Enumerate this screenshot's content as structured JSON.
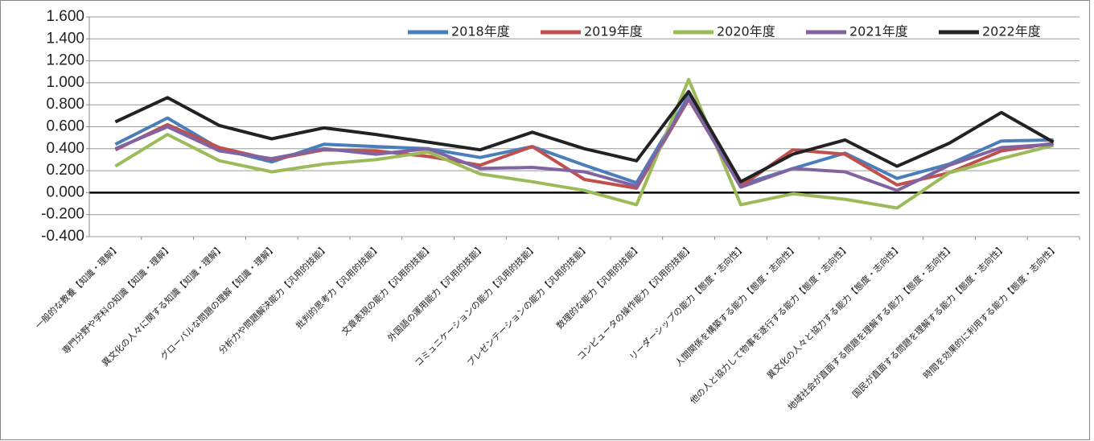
{
  "chart_data": {
    "type": "line",
    "categories": [
      "一般的な教養【知識・理解】",
      "専門分野や学科の知識【知識・理解】",
      "異文化の人々に関する知識【知識・理解】",
      "グローバルな問題の理解【知識・理解】",
      "分析力や問題解決能力【汎用的技能】",
      "批判的思考力【汎用的技能】",
      "文章表現の能力【汎用的技能】",
      "外国語の運用能力【汎用的技能】",
      "コミュニケーションの能力【汎用的技能】",
      "プレゼンテーションの能力【汎用的技能】",
      "数理的な能力【汎用的技能】",
      "コンピュータの操作能力【汎用的技能】",
      "リーダーシップの能力【態度・志向性】",
      "人間関係を構築する能力【態度・志向性】",
      "他の人と協力して物事を遂行する能力【態度・志向性】",
      "異文化の人々と協力する能力【態度・志向性】",
      "地域社会が直面する問題を理解する能力【態度・志向性】",
      "国民が直面する問題を理解する能力【態度・志向性】",
      "時間を効果的に利用する能力【態度・志向性】"
    ],
    "series": [
      {
        "name": "2018年度",
        "color": "#4a7ebb",
        "values": [
          0.44,
          0.68,
          0.4,
          0.28,
          0.44,
          0.42,
          0.4,
          0.32,
          0.42,
          0.25,
          0.09,
          0.88,
          0.07,
          0.22,
          0.36,
          0.13,
          0.26,
          0.47,
          0.48
        ]
      },
      {
        "name": "2019年度",
        "color": "#c0504d",
        "values": [
          0.39,
          0.62,
          0.41,
          0.3,
          0.39,
          0.38,
          0.33,
          0.25,
          0.42,
          0.12,
          0.04,
          0.85,
          0.06,
          0.39,
          0.35,
          0.07,
          0.18,
          0.38,
          0.45
        ]
      },
      {
        "name": "2020年度",
        "color": "#9bbb59",
        "values": [
          0.24,
          0.53,
          0.29,
          0.19,
          0.26,
          0.3,
          0.37,
          0.17,
          0.1,
          0.02,
          -0.11,
          1.03,
          -0.11,
          -0.01,
          -0.06,
          -0.14,
          0.18,
          0.31,
          0.43
        ]
      },
      {
        "name": "2021年度",
        "color": "#8064a2",
        "values": [
          0.4,
          0.6,
          0.38,
          0.31,
          0.4,
          0.35,
          0.4,
          0.22,
          0.23,
          0.19,
          0.06,
          0.86,
          0.05,
          0.22,
          0.19,
          0.02,
          0.25,
          0.41,
          0.44
        ]
      },
      {
        "name": "2022年度",
        "color": "#222222",
        "values": [
          0.645,
          0.865,
          0.61,
          0.49,
          0.59,
          0.53,
          0.46,
          0.39,
          0.55,
          0.4,
          0.29,
          0.92,
          0.1,
          0.35,
          0.48,
          0.24,
          0.45,
          0.73,
          0.46
        ]
      }
    ],
    "ylim": [
      -0.4,
      1.6
    ],
    "yticks": [
      {
        "value": -0.4,
        "label": "-0.400"
      },
      {
        "value": -0.2,
        "label": "-0.200"
      },
      {
        "value": 0,
        "label": "0.000"
      },
      {
        "value": 0.2,
        "label": "0.200"
      },
      {
        "value": 0.4,
        "label": "0.400"
      },
      {
        "value": 0.6,
        "label": "0.600"
      },
      {
        "value": 0.8,
        "label": "0.800"
      },
      {
        "value": 1.0,
        "label": "1.000"
      },
      {
        "value": 1.2,
        "label": "1.200"
      },
      {
        "value": 1.4,
        "label": "1.400"
      },
      {
        "value": 1.6,
        "label": "1.600"
      }
    ],
    "grid": true,
    "legend": "top-right"
  }
}
